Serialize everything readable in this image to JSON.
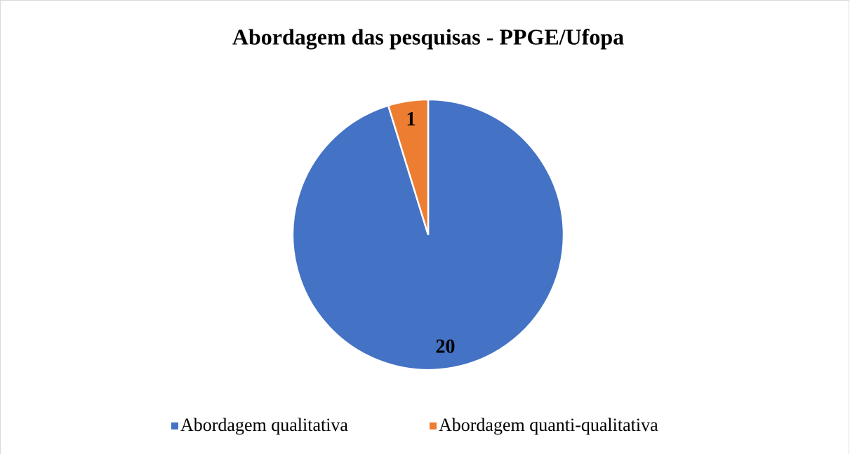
{
  "chart_data": {
    "type": "pie",
    "title": "Abordagem das pesquisas - PPGE/Ufopa",
    "categories": [
      "Abordagem qualitativa",
      "Abordagem quanti-qualitativa"
    ],
    "values": [
      20,
      1
    ],
    "colors": [
      "#4472c4",
      "#ed7d31"
    ],
    "legend": "bottom"
  }
}
